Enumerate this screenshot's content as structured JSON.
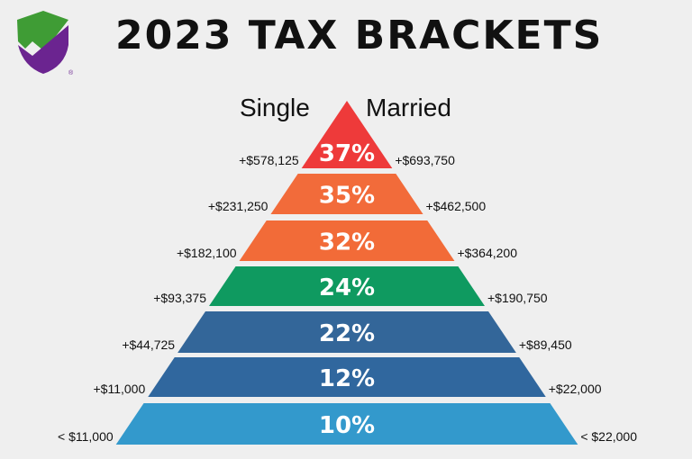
{
  "title": "2023 TAX BRACKETS",
  "logo": {
    "icon": "shield-check-icon",
    "colors": {
      "top": "#3f9c35",
      "bottom": "#6b2490"
    },
    "mark": "®"
  },
  "columns": {
    "left": "Single",
    "right": "Married"
  },
  "brackets": [
    {
      "rate": "37%",
      "single": "+$578,125",
      "married": "+$693,750",
      "color": "#ee3a3a"
    },
    {
      "rate": "35%",
      "single": "+$231,250",
      "married": "+$462,500",
      "color": "#f26b3a"
    },
    {
      "rate": "32%",
      "single": "+$182,100",
      "married": "+$364,200",
      "color": "#f26b38"
    },
    {
      "rate": "24%",
      "single": "+$93,375",
      "married": "+$190,750",
      "color": "#0f9a60"
    },
    {
      "rate": "22%",
      "single": "+$44,725",
      "married": "+$89,450",
      "color": "#336699"
    },
    {
      "rate": "12%",
      "single": "+$11,000",
      "married": "+$22,000",
      "color": "#30679e"
    },
    {
      "rate": "10%",
      "single": "< $11,000",
      "married": "< $22,000",
      "color": "#3399cc"
    }
  ]
}
